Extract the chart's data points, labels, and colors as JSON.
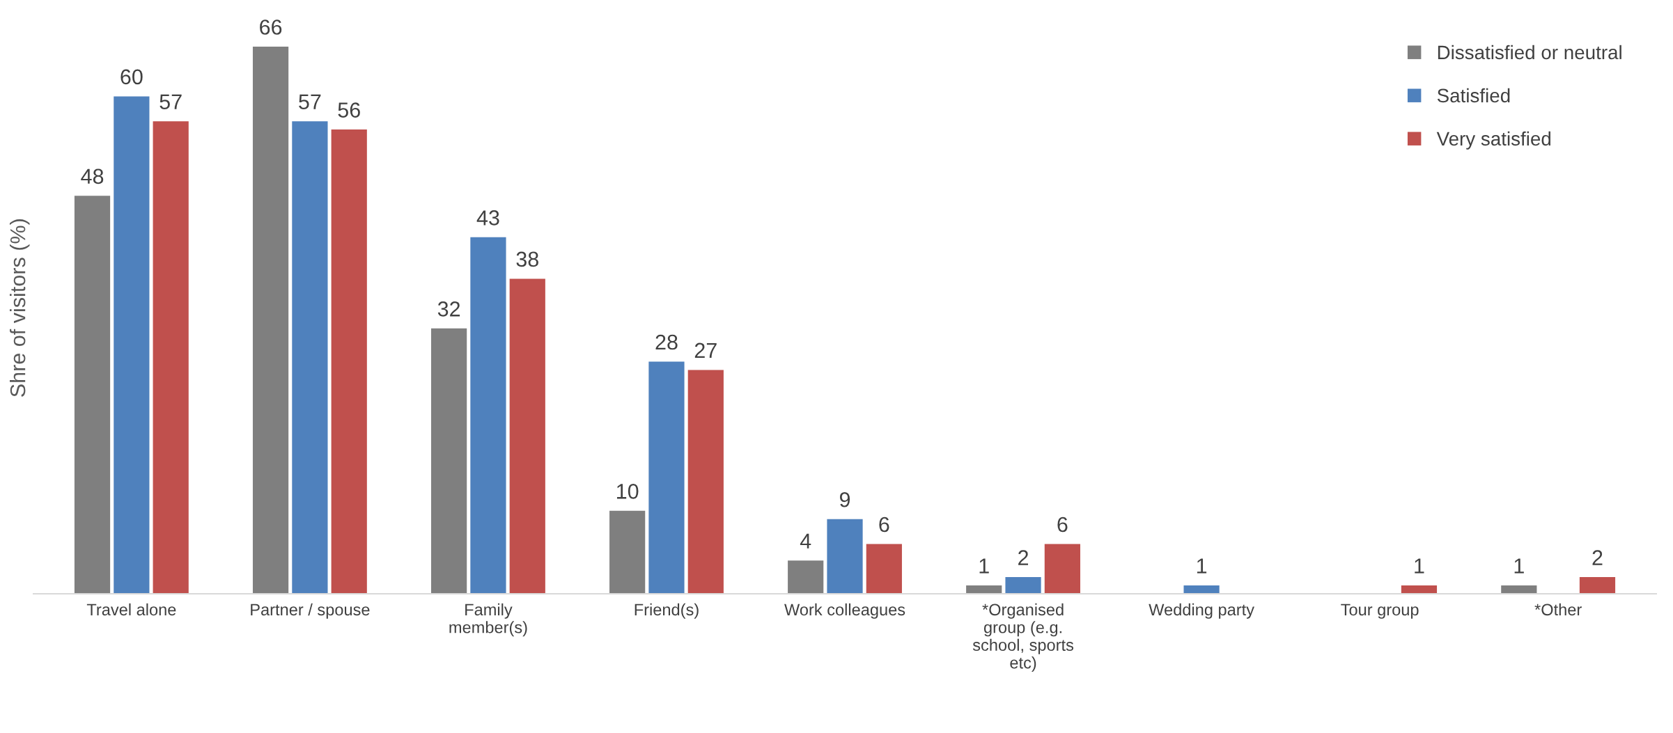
{
  "chart_data": {
    "type": "bar",
    "ylabel": "Shre of visitors (%)",
    "categories": [
      "Travel alone",
      "Partner / spouse",
      "Family\nmember(s)",
      "Friend(s)",
      "Work colleagues",
      "*Organised\ngroup (e.g.\nschool, sports\netc)",
      "Wedding party",
      "Tour group",
      "*Other"
    ],
    "series": [
      {
        "name": "Dissatisfied or neutral",
        "color": "#7f7f7f",
        "values": [
          48,
          66,
          32,
          10,
          4,
          1,
          null,
          null,
          1
        ]
      },
      {
        "name": "Satisfied",
        "color": "#4f81bd",
        "values": [
          60,
          57,
          43,
          28,
          9,
          2,
          1,
          null,
          null
        ]
      },
      {
        "name": "Very satisfied",
        "color": "#c0504d",
        "values": [
          57,
          56,
          38,
          27,
          6,
          6,
          null,
          1,
          2
        ]
      }
    ],
    "data_labels": true,
    "legend": "top right",
    "grid": false
  }
}
